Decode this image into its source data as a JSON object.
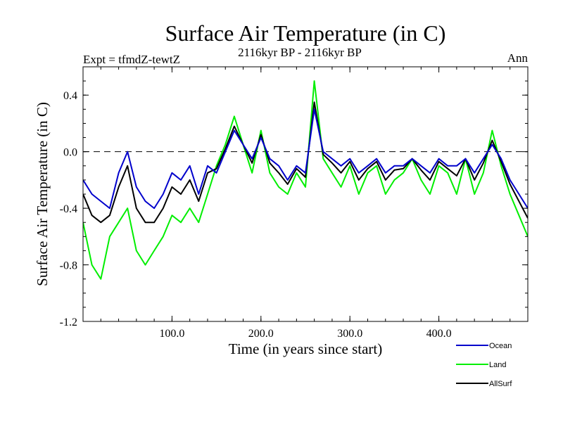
{
  "chart_data": {
    "type": "line",
    "title": "Surface Air Temperature (in C)",
    "subtitle": "2116kyr BP - 2116kyr BP",
    "expt_label": "Expt = tfmdZ-tewtZ",
    "period_label": "Ann",
    "xlabel": "Time (in years since start)",
    "ylabel": "Surface Air Temperature (in C)",
    "xlim": [
      0,
      500
    ],
    "ylim": [
      -1.2,
      0.6
    ],
    "x_ticks": [
      100,
      200,
      300,
      400
    ],
    "x_tick_labels": [
      "100.0",
      "200.0",
      "300.0",
      "400.0"
    ],
    "y_ticks": [
      -1.2,
      -0.8,
      -0.4,
      0.0,
      0.4
    ],
    "y_tick_labels": [
      "-1.2",
      "-0.8",
      "-0.4",
      "0.0",
      "0.4"
    ],
    "reference_line_y": 0.0,
    "legend_position": "bottom-right",
    "series": [
      {
        "name": "Ocean",
        "color": "#0000cc",
        "x": [
          0,
          10,
          20,
          30,
          40,
          50,
          60,
          70,
          80,
          90,
          100,
          110,
          120,
          130,
          140,
          150,
          160,
          170,
          180,
          190,
          200,
          210,
          220,
          230,
          240,
          250,
          260,
          270,
          280,
          290,
          300,
          310,
          320,
          330,
          340,
          350,
          360,
          370,
          380,
          390,
          400,
          410,
          420,
          430,
          440,
          450,
          460,
          470,
          480,
          490,
          500
        ],
        "values": [
          -0.2,
          -0.3,
          -0.35,
          -0.4,
          -0.15,
          0.0,
          -0.25,
          -0.35,
          -0.4,
          -0.3,
          -0.15,
          -0.2,
          -0.1,
          -0.3,
          -0.1,
          -0.15,
          0.0,
          0.15,
          0.05,
          -0.05,
          0.1,
          -0.05,
          -0.1,
          -0.2,
          -0.1,
          -0.15,
          0.3,
          0.0,
          -0.05,
          -0.1,
          -0.05,
          -0.15,
          -0.1,
          -0.05,
          -0.15,
          -0.1,
          -0.1,
          -0.05,
          -0.1,
          -0.15,
          -0.05,
          -0.1,
          -0.1,
          -0.05,
          -0.15,
          -0.05,
          0.05,
          -0.05,
          -0.2,
          -0.3,
          -0.4
        ]
      },
      {
        "name": "Land",
        "color": "#00ee00",
        "x": [
          0,
          10,
          20,
          30,
          40,
          50,
          60,
          70,
          80,
          90,
          100,
          110,
          120,
          130,
          140,
          150,
          160,
          170,
          180,
          190,
          200,
          210,
          220,
          230,
          240,
          250,
          260,
          270,
          280,
          290,
          300,
          310,
          320,
          330,
          340,
          350,
          360,
          370,
          380,
          390,
          400,
          410,
          420,
          430,
          440,
          450,
          460,
          470,
          480,
          490,
          500
        ],
        "values": [
          -0.5,
          -0.8,
          -0.9,
          -0.6,
          -0.5,
          -0.4,
          -0.7,
          -0.8,
          -0.7,
          -0.6,
          -0.45,
          -0.5,
          -0.4,
          -0.5,
          -0.3,
          -0.1,
          0.05,
          0.25,
          0.05,
          -0.15,
          0.15,
          -0.15,
          -0.25,
          -0.3,
          -0.15,
          -0.25,
          0.5,
          -0.05,
          -0.15,
          -0.25,
          -0.1,
          -0.3,
          -0.15,
          -0.1,
          -0.3,
          -0.2,
          -0.15,
          -0.05,
          -0.2,
          -0.3,
          -0.1,
          -0.15,
          -0.3,
          -0.05,
          -0.3,
          -0.15,
          0.15,
          -0.1,
          -0.3,
          -0.45,
          -0.6
        ]
      },
      {
        "name": "AllSurf",
        "color": "#000000",
        "x": [
          0,
          10,
          20,
          30,
          40,
          50,
          60,
          70,
          80,
          90,
          100,
          110,
          120,
          130,
          140,
          150,
          160,
          170,
          180,
          190,
          200,
          210,
          220,
          230,
          240,
          250,
          260,
          270,
          280,
          290,
          300,
          310,
          320,
          330,
          340,
          350,
          360,
          370,
          380,
          390,
          400,
          410,
          420,
          430,
          440,
          450,
          460,
          470,
          480,
          490,
          500
        ],
        "values": [
          -0.3,
          -0.45,
          -0.5,
          -0.45,
          -0.25,
          -0.1,
          -0.4,
          -0.5,
          -0.5,
          -0.4,
          -0.25,
          -0.3,
          -0.2,
          -0.35,
          -0.15,
          -0.12,
          0.02,
          0.18,
          0.05,
          -0.08,
          0.12,
          -0.08,
          -0.15,
          -0.23,
          -0.12,
          -0.18,
          0.35,
          -0.02,
          -0.08,
          -0.15,
          -0.07,
          -0.2,
          -0.12,
          -0.07,
          -0.2,
          -0.13,
          -0.12,
          -0.05,
          -0.13,
          -0.2,
          -0.07,
          -0.12,
          -0.17,
          -0.05,
          -0.2,
          -0.08,
          0.08,
          -0.07,
          -0.23,
          -0.35,
          -0.47
        ]
      }
    ]
  }
}
